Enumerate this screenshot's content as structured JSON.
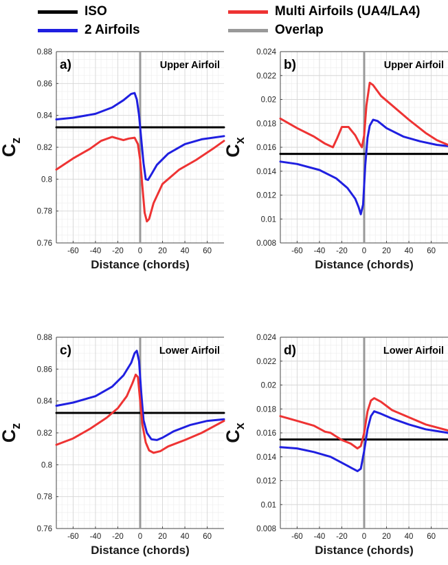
{
  "legend": [
    {
      "label": "ISO",
      "color": "#000000"
    },
    {
      "label": "Multi Airfoils (UA4/LA4)",
      "color": "#ee3333"
    },
    {
      "label": "2 Airfoils",
      "color": "#1f1fe0"
    },
    {
      "label": "Overlap",
      "color": "#999999"
    }
  ],
  "chart_data": [
    {
      "type": "line",
      "panel_label": "a)",
      "title": "Upper Airfoil",
      "xlabel": "Distance (chords)",
      "ylabel": "C",
      "ylabel_sub": "z",
      "xlim": [
        -75,
        75
      ],
      "ylim": [
        0.76,
        0.88
      ],
      "xticks": [
        "-60",
        "-40",
        "-20",
        "0",
        "20",
        "40",
        "60"
      ],
      "yticks": [
        "0.76",
        "0.78",
        "0.8",
        "0.82",
        "0.84",
        "0.86",
        "0.88"
      ],
      "grid": true,
      "overlap_x": 0,
      "series": [
        {
          "name": "ISO",
          "color": "#000000",
          "points": [
            [
              -75,
              0.8325
            ],
            [
              75,
              0.8325
            ]
          ]
        },
        {
          "name": "2 Airfoils",
          "color": "#1f1fe0",
          "points": [
            [
              -75,
              0.8375
            ],
            [
              -60,
              0.8385
            ],
            [
              -40,
              0.841
            ],
            [
              -25,
              0.845
            ],
            [
              -15,
              0.8495
            ],
            [
              -8,
              0.8535
            ],
            [
              -5,
              0.854
            ],
            [
              -3,
              0.85
            ],
            [
              -1,
              0.84
            ],
            [
              1,
              0.825
            ],
            [
              3,
              0.81
            ],
            [
              5,
              0.8
            ],
            [
              7,
              0.7995
            ],
            [
              10,
              0.803
            ],
            [
              15,
              0.809
            ],
            [
              25,
              0.816
            ],
            [
              40,
              0.822
            ],
            [
              55,
              0.825
            ],
            [
              75,
              0.827
            ]
          ]
        },
        {
          "name": "Multi Airfoils (UA4/LA4)",
          "color": "#ee3333",
          "points": [
            [
              -75,
              0.806
            ],
            [
              -60,
              0.813
            ],
            [
              -45,
              0.819
            ],
            [
              -35,
              0.824
            ],
            [
              -25,
              0.8265
            ],
            [
              -20,
              0.8255
            ],
            [
              -15,
              0.8245
            ],
            [
              -10,
              0.8255
            ],
            [
              -5,
              0.826
            ],
            [
              -2,
              0.822
            ],
            [
              0,
              0.812
            ],
            [
              2,
              0.795
            ],
            [
              4,
              0.779
            ],
            [
              6,
              0.7735
            ],
            [
              8,
              0.775
            ],
            [
              12,
              0.785
            ],
            [
              20,
              0.797
            ],
            [
              35,
              0.806
            ],
            [
              50,
              0.812
            ],
            [
              65,
              0.819
            ],
            [
              75,
              0.824
            ]
          ]
        }
      ]
    },
    {
      "type": "line",
      "panel_label": "b)",
      "title": "Upper Airfoil",
      "xlabel": "Distance (chords)",
      "ylabel": "C",
      "ylabel_sub": "x",
      "xlim": [
        -75,
        75
      ],
      "ylim": [
        0.008,
        0.024
      ],
      "xticks": [
        "-60",
        "-40",
        "-20",
        "0",
        "20",
        "40",
        "60"
      ],
      "yticks": [
        "0.008",
        "0.01",
        "0.012",
        "0.014",
        "0.016",
        "0.018",
        "0.02",
        "0.022",
        "0.024"
      ],
      "grid": true,
      "overlap_x": 0,
      "series": [
        {
          "name": "ISO",
          "color": "#000000",
          "points": [
            [
              -75,
              0.01545
            ],
            [
              75,
              0.01545
            ]
          ]
        },
        {
          "name": "2 Airfoils",
          "color": "#1f1fe0",
          "points": [
            [
              -75,
              0.0148
            ],
            [
              -60,
              0.0146
            ],
            [
              -40,
              0.0141
            ],
            [
              -25,
              0.0134
            ],
            [
              -15,
              0.0126
            ],
            [
              -8,
              0.0117
            ],
            [
              -5,
              0.011
            ],
            [
              -3,
              0.0104
            ],
            [
              -1,
              0.0112
            ],
            [
              1,
              0.0145
            ],
            [
              3,
              0.0168
            ],
            [
              5,
              0.0178
            ],
            [
              8,
              0.0183
            ],
            [
              12,
              0.0182
            ],
            [
              20,
              0.0176
            ],
            [
              35,
              0.0169
            ],
            [
              50,
              0.0165
            ],
            [
              65,
              0.0162
            ],
            [
              75,
              0.0161
            ]
          ]
        },
        {
          "name": "Multi Airfoils (UA4/LA4)",
          "color": "#ee3333",
          "points": [
            [
              -75,
              0.0184
            ],
            [
              -60,
              0.0176
            ],
            [
              -45,
              0.0169
            ],
            [
              -35,
              0.0163
            ],
            [
              -28,
              0.016
            ],
            [
              -24,
              0.0168
            ],
            [
              -20,
              0.0177
            ],
            [
              -14,
              0.0177
            ],
            [
              -8,
              0.017
            ],
            [
              -4,
              0.0163
            ],
            [
              -2,
              0.016
            ],
            [
              0,
              0.017
            ],
            [
              2,
              0.0195
            ],
            [
              5,
              0.0214
            ],
            [
              8,
              0.0212
            ],
            [
              15,
              0.0203
            ],
            [
              25,
              0.0195
            ],
            [
              40,
              0.0183
            ],
            [
              55,
              0.0172
            ],
            [
              65,
              0.0166
            ],
            [
              75,
              0.0162
            ]
          ]
        }
      ]
    },
    {
      "type": "line",
      "panel_label": "c)",
      "title": "Lower Airfoil",
      "xlabel": "Distance (chords)",
      "ylabel": "C",
      "ylabel_sub": "z",
      "xlim": [
        -75,
        75
      ],
      "ylim": [
        0.76,
        0.88
      ],
      "xticks": [
        "-60",
        "-40",
        "-20",
        "0",
        "20",
        "40",
        "60"
      ],
      "yticks": [
        "0.76",
        "0.78",
        "0.8",
        "0.82",
        "0.84",
        "0.86",
        "0.88"
      ],
      "grid": true,
      "overlap_x": 0,
      "series": [
        {
          "name": "ISO",
          "color": "#000000",
          "points": [
            [
              -75,
              0.8325
            ],
            [
              75,
              0.8325
            ]
          ]
        },
        {
          "name": "2 Airfoils",
          "color": "#1f1fe0",
          "points": [
            [
              -75,
              0.837
            ],
            [
              -60,
              0.839
            ],
            [
              -40,
              0.843
            ],
            [
              -25,
              0.849
            ],
            [
              -15,
              0.856
            ],
            [
              -8,
              0.864
            ],
            [
              -5,
              0.87
            ],
            [
              -3,
              0.8715
            ],
            [
              -1,
              0.865
            ],
            [
              1,
              0.845
            ],
            [
              3,
              0.828
            ],
            [
              6,
              0.82
            ],
            [
              10,
              0.816
            ],
            [
              15,
              0.8155
            ],
            [
              20,
              0.817
            ],
            [
              30,
              0.821
            ],
            [
              45,
              0.825
            ],
            [
              60,
              0.8275
            ],
            [
              75,
              0.8285
            ]
          ]
        },
        {
          "name": "Multi Airfoils (UA4/LA4)",
          "color": "#ee3333",
          "points": [
            [
              -75,
              0.8125
            ],
            [
              -60,
              0.8165
            ],
            [
              -45,
              0.8225
            ],
            [
              -30,
              0.8295
            ],
            [
              -20,
              0.8355
            ],
            [
              -12,
              0.843
            ],
            [
              -7,
              0.851
            ],
            [
              -4,
              0.8565
            ],
            [
              -2,
              0.855
            ],
            [
              0,
              0.84
            ],
            [
              2,
              0.825
            ],
            [
              5,
              0.814
            ],
            [
              8,
              0.809
            ],
            [
              12,
              0.8075
            ],
            [
              18,
              0.8085
            ],
            [
              25,
              0.8115
            ],
            [
              40,
              0.8155
            ],
            [
              55,
              0.82
            ],
            [
              75,
              0.8275
            ]
          ]
        }
      ]
    },
    {
      "type": "line",
      "panel_label": "d)",
      "title": "Lower Airfoil",
      "xlabel": "Distance (chords)",
      "ylabel": "C",
      "ylabel_sub": "x",
      "xlim": [
        -75,
        75
      ],
      "ylim": [
        0.008,
        0.024
      ],
      "xticks": [
        "-60",
        "-40",
        "-20",
        "0",
        "20",
        "40",
        "60"
      ],
      "yticks": [
        "0.008",
        "0.01",
        "0.012",
        "0.014",
        "0.016",
        "0.018",
        "0.02",
        "0.022",
        "0.024"
      ],
      "grid": true,
      "overlap_x": 0,
      "series": [
        {
          "name": "ISO",
          "color": "#000000",
          "points": [
            [
              -75,
              0.01545
            ],
            [
              75,
              0.01545
            ]
          ]
        },
        {
          "name": "2 Airfoils",
          "color": "#1f1fe0",
          "points": [
            [
              -75,
              0.0148
            ],
            [
              -60,
              0.0147
            ],
            [
              -45,
              0.0144
            ],
            [
              -30,
              0.014
            ],
            [
              -20,
              0.0135
            ],
            [
              -12,
              0.0131
            ],
            [
              -6,
              0.0128
            ],
            [
              -3,
              0.013
            ],
            [
              0,
              0.0145
            ],
            [
              3,
              0.0163
            ],
            [
              6,
              0.0174
            ],
            [
              9,
              0.0178
            ],
            [
              15,
              0.0176
            ],
            [
              25,
              0.0172
            ],
            [
              40,
              0.0167
            ],
            [
              55,
              0.0163
            ],
            [
              75,
              0.016
            ]
          ]
        },
        {
          "name": "Multi Airfoils (UA4/LA4)",
          "color": "#ee3333",
          "points": [
            [
              -75,
              0.0174
            ],
            [
              -60,
              0.017
            ],
            [
              -45,
              0.0166
            ],
            [
              -35,
              0.0161
            ],
            [
              -30,
              0.016
            ],
            [
              -25,
              0.0157
            ],
            [
              -20,
              0.0154
            ],
            [
              -12,
              0.0151
            ],
            [
              -6,
              0.0147
            ],
            [
              -3,
              0.0149
            ],
            [
              0,
              0.016
            ],
            [
              3,
              0.0178
            ],
            [
              6,
              0.0187
            ],
            [
              9,
              0.0189
            ],
            [
              15,
              0.0186
            ],
            [
              25,
              0.0179
            ],
            [
              40,
              0.0173
            ],
            [
              55,
              0.0167
            ],
            [
              75,
              0.0162
            ]
          ]
        }
      ]
    }
  ]
}
